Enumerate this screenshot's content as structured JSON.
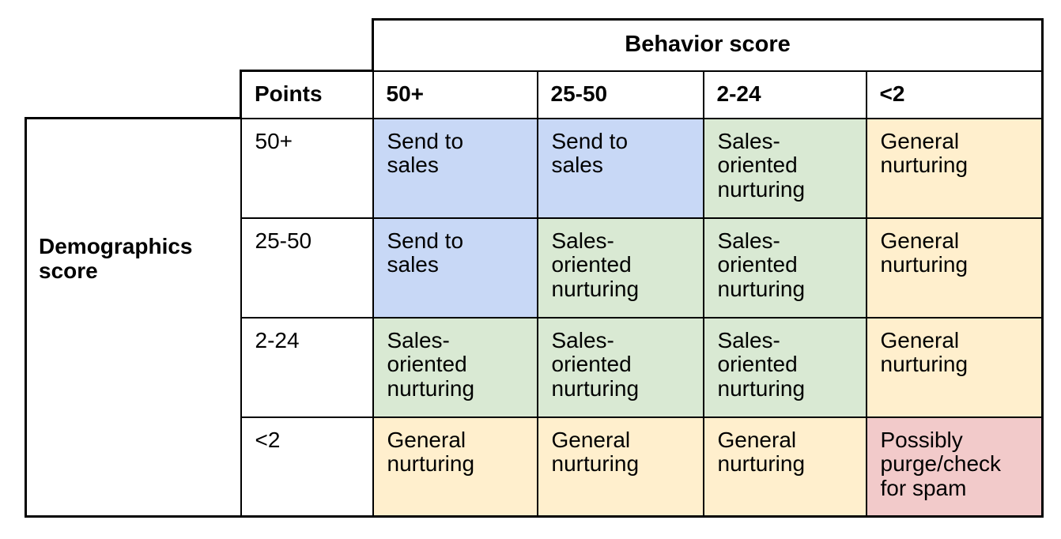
{
  "chart_data": {
    "type": "table",
    "column_group_header": "Behavior score",
    "row_group_header": "Demographics score",
    "points_header": "Points",
    "column_headers": [
      "50+",
      "25-50",
      "2-24",
      "<2"
    ],
    "rows": [
      {
        "label": "50+",
        "cells": [
          {
            "text": "Send to sales",
            "category": "send-to-sales",
            "bg": "#c8d8f6"
          },
          {
            "text": "Send to sales",
            "category": "send-to-sales",
            "bg": "#c8d8f6"
          },
          {
            "text": "Sales-oriented nurturing",
            "category": "sales-oriented-nurturing",
            "bg": "#d9e9d3"
          },
          {
            "text": "General nurturing",
            "category": "general-nurturing",
            "bg": "#ffefcd"
          }
        ]
      },
      {
        "label": "25-50",
        "cells": [
          {
            "text": "Send to sales",
            "category": "send-to-sales",
            "bg": "#c8d8f6"
          },
          {
            "text": "Sales-oriented nurturing",
            "category": "sales-oriented-nurturing",
            "bg": "#d9e9d3"
          },
          {
            "text": "Sales-oriented nurturing",
            "category": "sales-oriented-nurturing",
            "bg": "#d9e9d3"
          },
          {
            "text": "General nurturing",
            "category": "general-nurturing",
            "bg": "#ffefcd"
          }
        ]
      },
      {
        "label": "2-24",
        "cells": [
          {
            "text": "Sales-oriented nurturing",
            "category": "sales-oriented-nurturing",
            "bg": "#d9e9d3"
          },
          {
            "text": "Sales-oriented nurturing",
            "category": "sales-oriented-nurturing",
            "bg": "#d9e9d3"
          },
          {
            "text": "Sales-oriented nurturing",
            "category": "sales-oriented-nurturing",
            "bg": "#d9e9d3"
          },
          {
            "text": "General nurturing",
            "category": "general-nurturing",
            "bg": "#ffefcd"
          }
        ]
      },
      {
        "label": "<2",
        "cells": [
          {
            "text": "General nurturing",
            "category": "general-nurturing",
            "bg": "#ffefcd"
          },
          {
            "text": "General nurturing",
            "category": "general-nurturing",
            "bg": "#ffefcd"
          },
          {
            "text": "General nurturing",
            "category": "general-nurturing",
            "bg": "#ffefcd"
          },
          {
            "text": "Possibly purge/check for spam",
            "category": "possibly-purge-check-for-spam",
            "bg": "#f2caca"
          }
        ]
      }
    ],
    "palette": {
      "send_to_sales_blue": "#c8d8f6",
      "sales_oriented_nurturing_green": "#d9e9d3",
      "general_nurturing_yellow": "#ffefcd",
      "possibly_purge_red": "#f2caca",
      "border_black": "#000000",
      "text_black": "#000000",
      "background_white": "#ffffff"
    },
    "layout_hints": {
      "legend_position": "none",
      "grid": "full-borders",
      "column_axis": "top",
      "row_axis": "left"
    }
  }
}
